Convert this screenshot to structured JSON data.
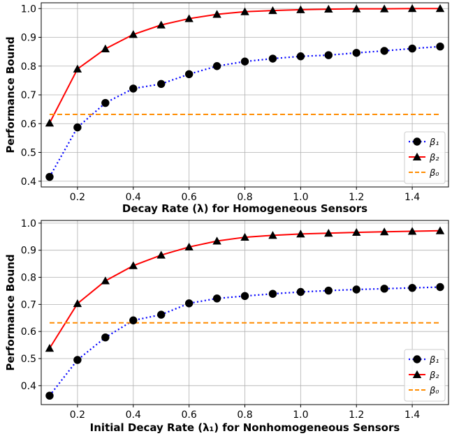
{
  "chart_data": [
    {
      "type": "line",
      "xlabel": "Decay Rate (λ) for Homogeneous Sensors",
      "ylabel": "Performance Bound",
      "xlim": [
        0.07,
        1.53
      ],
      "ylim": [
        0.38,
        1.02
      ],
      "xticks": [
        0.2,
        0.4,
        0.6,
        0.8,
        1.0,
        1.2,
        1.4
      ],
      "xtick_labels": [
        "0.2",
        "0.4",
        "0.6",
        "0.8",
        "1.0",
        "1.2",
        "1.4"
      ],
      "yticks": [
        0.4,
        0.5,
        0.6,
        0.7,
        0.8,
        0.9,
        1.0
      ],
      "ytick_labels": [
        "0.4",
        "0.5",
        "0.6",
        "0.7",
        "0.8",
        "0.9",
        "1.0"
      ],
      "grid": true,
      "legend_position": "lower right",
      "x": [
        0.1,
        0.2,
        0.3,
        0.4,
        0.5,
        0.6,
        0.7,
        0.8,
        0.9,
        1.0,
        1.1,
        1.2,
        1.3,
        1.4,
        1.5
      ],
      "series": [
        {
          "name": "β₁",
          "color": "#0000ff",
          "style": "dotted",
          "marker": "circle",
          "values": [
            0.415,
            0.587,
            0.672,
            0.722,
            0.738,
            0.772,
            0.8,
            0.816,
            0.826,
            0.834,
            0.838,
            0.846,
            0.853,
            0.861,
            0.868
          ]
        },
        {
          "name": "β₂",
          "color": "#ff0000",
          "style": "solid",
          "marker": "triangle",
          "values": [
            0.602,
            0.79,
            0.86,
            0.91,
            0.943,
            0.965,
            0.98,
            0.989,
            0.993,
            0.996,
            0.998,
            0.999,
            0.999,
            1.0,
            1.0
          ]
        },
        {
          "name": "β₀",
          "color": "#ff8c00",
          "style": "dashed",
          "marker": "none",
          "values": [
            0.632,
            0.632,
            0.632,
            0.632,
            0.632,
            0.632,
            0.632,
            0.632,
            0.632,
            0.632,
            0.632,
            0.632,
            0.632,
            0.632,
            0.632
          ]
        }
      ]
    },
    {
      "type": "line",
      "xlabel": "Initial Decay Rate (λ₁) for Nonhomogeneous Sensors",
      "ylabel": "Performance Bound",
      "xlim": [
        0.07,
        1.53
      ],
      "ylim": [
        0.33,
        1.01
      ],
      "xticks": [
        0.2,
        0.4,
        0.6,
        0.8,
        1.0,
        1.2,
        1.4
      ],
      "xtick_labels": [
        "0.2",
        "0.4",
        "0.6",
        "0.8",
        "1.0",
        "1.2",
        "1.4"
      ],
      "yticks": [
        0.4,
        0.5,
        0.6,
        0.7,
        0.8,
        0.9,
        1.0
      ],
      "ytick_labels": [
        "0.4",
        "0.5",
        "0.6",
        "0.7",
        "0.8",
        "0.9",
        "1.0"
      ],
      "grid": true,
      "legend_position": "lower right",
      "x": [
        0.1,
        0.2,
        0.3,
        0.4,
        0.5,
        0.6,
        0.7,
        0.8,
        0.9,
        1.0,
        1.1,
        1.2,
        1.3,
        1.4,
        1.5
      ],
      "series": [
        {
          "name": "β₁",
          "color": "#0000ff",
          "style": "dotted",
          "marker": "circle",
          "values": [
            0.363,
            0.495,
            0.578,
            0.641,
            0.662,
            0.704,
            0.722,
            0.731,
            0.739,
            0.746,
            0.751,
            0.755,
            0.758,
            0.761,
            0.764
          ]
        },
        {
          "name": "β₂",
          "color": "#ff0000",
          "style": "solid",
          "marker": "triangle",
          "values": [
            0.538,
            0.703,
            0.787,
            0.843,
            0.882,
            0.912,
            0.934,
            0.948,
            0.955,
            0.96,
            0.963,
            0.966,
            0.968,
            0.97,
            0.972
          ]
        },
        {
          "name": "β₀",
          "color": "#ff8c00",
          "style": "dashed",
          "marker": "none",
          "values": [
            0.632,
            0.632,
            0.632,
            0.632,
            0.632,
            0.632,
            0.632,
            0.632,
            0.632,
            0.632,
            0.632,
            0.632,
            0.632,
            0.632,
            0.632
          ]
        }
      ]
    }
  ]
}
